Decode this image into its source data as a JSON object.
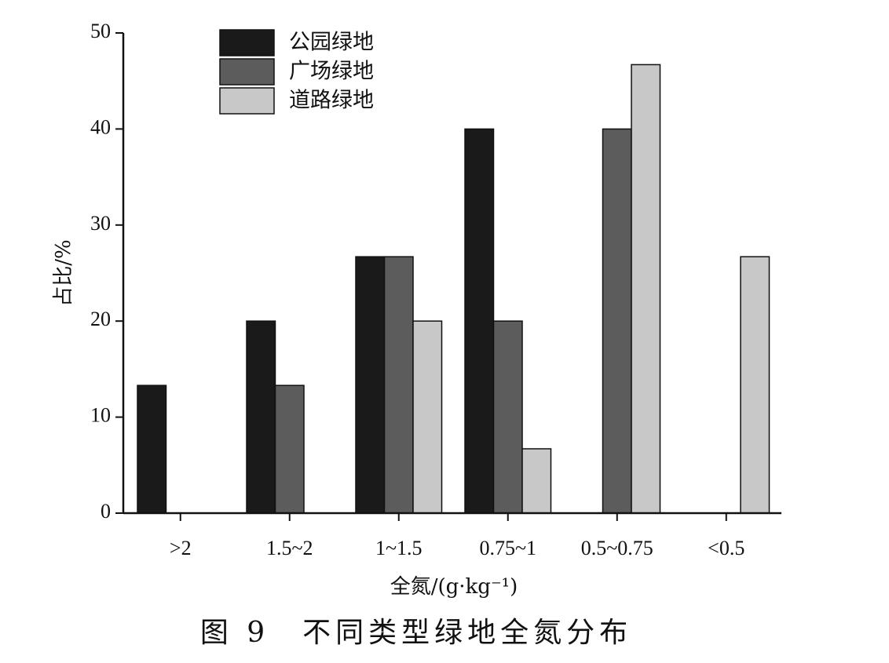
{
  "chart_data": {
    "type": "bar",
    "categories": [
      ">2",
      "1.5~2",
      "1~1.5",
      "0.75~1",
      "0.5~0.75",
      "<0.5"
    ],
    "series": [
      {
        "name": "公园绿地",
        "color": "#1a1a1a",
        "values": [
          13.3,
          20,
          26.7,
          40,
          0,
          0
        ]
      },
      {
        "name": "广场绿地",
        "color": "#5c5c5c",
        "values": [
          0,
          13.3,
          26.7,
          20,
          40,
          0
        ]
      },
      {
        "name": "道路绿地",
        "color": "#c8c8c8",
        "values": [
          0,
          0,
          20,
          6.7,
          46.7,
          26.7
        ]
      }
    ],
    "xlabel": "全氮/(g·kg⁻¹)",
    "ylabel": "占比/%",
    "ylim": [
      0,
      50
    ],
    "yticks": [
      0,
      10,
      20,
      30,
      40,
      50
    ],
    "grid": false,
    "legend_position": "top-left",
    "caption": "图 9　不同类型绿地全氮分布"
  }
}
